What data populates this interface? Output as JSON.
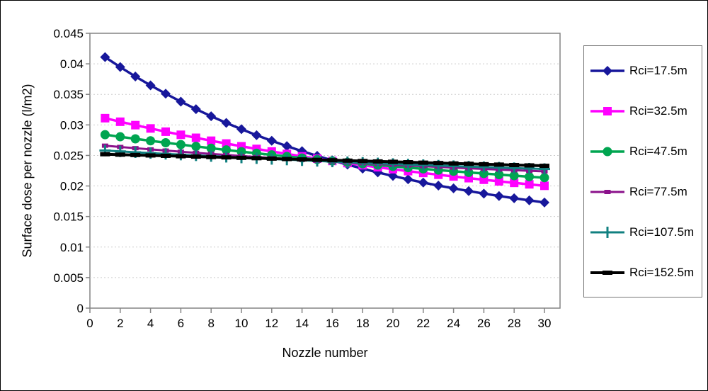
{
  "chart_data": {
    "type": "line",
    "title": "",
    "xlabel": "Nozzle number",
    "ylabel": "Surface dose per nozzle (l/m2)",
    "xlim": [
      0,
      30
    ],
    "ylim": [
      0,
      0.045
    ],
    "x_ticks": [
      "0",
      "2",
      "4",
      "6",
      "8",
      "10",
      "12",
      "14",
      "16",
      "18",
      "20",
      "22",
      "24",
      "26",
      "28",
      "30"
    ],
    "y_ticks": [
      "0",
      "0.005",
      "0.01",
      "0.015",
      "0.02",
      "0.025",
      "0.03",
      "0.035",
      "0.04",
      "0.045"
    ],
    "grid": "horizontal-dashed",
    "legend_position": "right",
    "colors": {
      "axis": "#848484",
      "grid": "#CDCDCD",
      "text": "#000000",
      "plot_bg": "#FFFFFF"
    },
    "x": [
      1,
      2,
      3,
      4,
      5,
      6,
      7,
      8,
      9,
      10,
      11,
      12,
      13,
      14,
      15,
      16,
      17,
      18,
      19,
      20,
      21,
      22,
      23,
      24,
      25,
      26,
      27,
      28,
      29,
      30
    ],
    "series": [
      {
        "name": "Rci=17.5m",
        "color": "#17179B",
        "marker": "diamond",
        "width": 3.5,
        "values": [
          0.0411,
          0.03947,
          0.03793,
          0.03648,
          0.03511,
          0.03381,
          0.03258,
          0.03142,
          0.03033,
          0.0293,
          0.02832,
          0.0274,
          0.02653,
          0.0257,
          0.02493,
          0.02419,
          0.0235,
          0.02284,
          0.02222,
          0.02164,
          0.02109,
          0.02056,
          0.02007,
          0.01961,
          0.01917,
          0.01875,
          0.01836,
          0.01799,
          0.01764,
          0.0173
        ]
      },
      {
        "name": "Rci=32.5m",
        "color": "#FF00FF",
        "marker": "square",
        "width": 3.5,
        "values": [
          0.0311,
          0.03052,
          0.02996,
          0.02942,
          0.02889,
          0.02838,
          0.02789,
          0.02741,
          0.02695,
          0.0265,
          0.02607,
          0.02565,
          0.02525,
          0.02485,
          0.02447,
          0.0241,
          0.02375,
          0.0234,
          0.02307,
          0.02275,
          0.02243,
          0.02213,
          0.02184,
          0.02156,
          0.02128,
          0.02102,
          0.02076,
          0.02051,
          0.02027,
          0.02003
        ]
      },
      {
        "name": "Rci=47.5m",
        "color": "#00A550",
        "marker": "circle",
        "width": 3.5,
        "values": [
          0.0284,
          0.02806,
          0.02772,
          0.0274,
          0.02708,
          0.02678,
          0.02648,
          0.02618,
          0.0259,
          0.02562,
          0.02535,
          0.02509,
          0.02483,
          0.02458,
          0.02434,
          0.0241,
          0.02387,
          0.02364,
          0.02343,
          0.02321,
          0.023,
          0.0228,
          0.0226,
          0.02241,
          0.02222,
          0.02204,
          0.02186,
          0.02169,
          0.02152,
          0.02136
        ]
      },
      {
        "name": "Rci=77.5m",
        "color": "#8B118B",
        "marker": "dash-small",
        "width": 3,
        "values": [
          0.0266,
          0.02639,
          0.02619,
          0.02599,
          0.0258,
          0.02561,
          0.02543,
          0.02525,
          0.02508,
          0.02491,
          0.02475,
          0.02459,
          0.02443,
          0.02429,
          0.02414,
          0.024,
          0.02386,
          0.02373,
          0.0236,
          0.02347,
          0.02335,
          0.02323,
          0.02312,
          0.023,
          0.02289,
          0.02279,
          0.02268,
          0.02258,
          0.02249,
          0.02239
        ]
      },
      {
        "name": "Rci=107.5m",
        "color": "#118080",
        "marker": "plus",
        "width": 3,
        "values": [
          0.0258,
          0.02566,
          0.02552,
          0.02539,
          0.02526,
          0.02513,
          0.02501,
          0.02489,
          0.02477,
          0.02465,
          0.02454,
          0.02442,
          0.02432,
          0.02421,
          0.0241,
          0.024,
          0.0239,
          0.0238,
          0.02371,
          0.02361,
          0.02352,
          0.02343,
          0.02334,
          0.02326,
          0.02317,
          0.02309,
          0.02301,
          0.02293,
          0.02285,
          0.02278
        ]
      },
      {
        "name": "Rci=152.5m",
        "color": "#000000",
        "marker": "dash-long",
        "width": 4,
        "values": [
          0.0252,
          0.02513,
          0.02507,
          0.025,
          0.02494,
          0.02487,
          0.02481,
          0.02474,
          0.02468,
          0.02461,
          0.02455,
          0.02448,
          0.02441,
          0.02435,
          0.02428,
          0.02422,
          0.02415,
          0.02409,
          0.02402,
          0.02396,
          0.02389,
          0.02382,
          0.02376,
          0.02369,
          0.02363,
          0.02356,
          0.0235,
          0.02343,
          0.02337,
          0.0233
        ]
      }
    ]
  }
}
